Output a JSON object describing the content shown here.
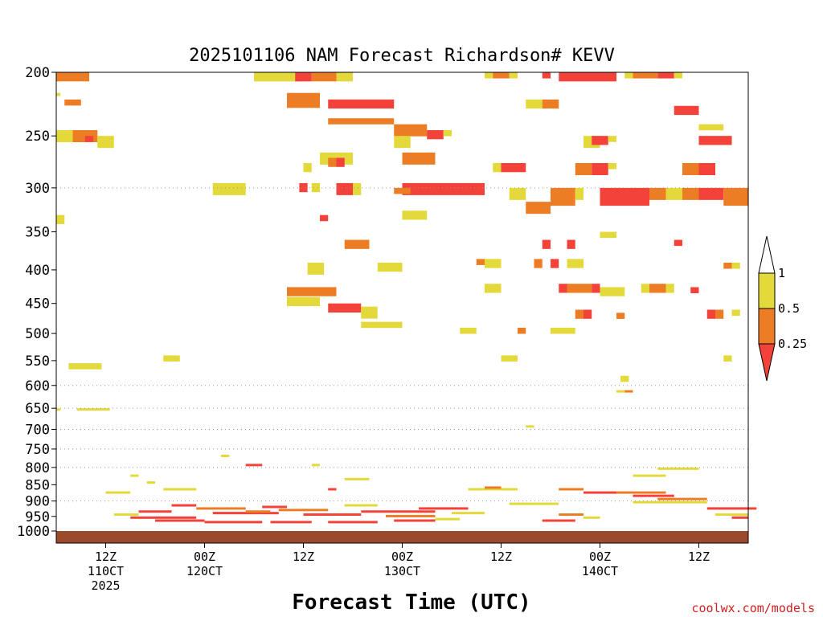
{
  "chart_data": {
    "type": "heatmap",
    "title": "2025101106 NAM Forecast Richardson# KEVV",
    "xlabel": "Forecast Time (UTC)",
    "ylabel": "",
    "footer": "coolwx.com/models",
    "x_range_hours": [
      0,
      84
    ],
    "y_range_hpa": [
      200,
      1000
    ],
    "y_ticks": [
      200,
      250,
      300,
      350,
      400,
      450,
      500,
      550,
      600,
      650,
      700,
      750,
      800,
      850,
      900,
      950,
      1000
    ],
    "y_gridlines": [
      300,
      600,
      650,
      700,
      750,
      800,
      900
    ],
    "x_ticks": [
      {
        "hour": 6,
        "lines": [
          "12Z",
          "110CT",
          "2025"
        ]
      },
      {
        "hour": 18,
        "lines": [
          "00Z",
          "120CT"
        ]
      },
      {
        "hour": 30,
        "lines": [
          "12Z"
        ]
      },
      {
        "hour": 42,
        "lines": [
          "00Z",
          "130CT"
        ]
      },
      {
        "hour": 54,
        "lines": [
          "12Z"
        ]
      },
      {
        "hour": 66,
        "lines": [
          "00Z",
          "140CT"
        ]
      },
      {
        "hour": 78,
        "lines": [
          "12Z"
        ]
      }
    ],
    "colorbar": {
      "labels": [
        "1",
        "0.5",
        "0.25"
      ],
      "colors": {
        "high": "#ffffff",
        "mid": "#e3d93a",
        "low": "#ec7d25",
        "lowest": "#f2423a",
        "ground": "#9b4a2b"
      }
    },
    "ground_level_hpa": 985,
    "cells": [
      {
        "t": 0,
        "p": 200,
        "h": 1.5,
        "c": "low",
        "w": 4
      },
      {
        "t": 0,
        "p": 215,
        "h": 0.5,
        "c": "mid",
        "w": 0.5
      },
      {
        "t": 1,
        "p": 220,
        "h": 1,
        "c": "low",
        "w": 2
      },
      {
        "t": 0,
        "p": 245,
        "h": 2,
        "c": "mid",
        "w": 2
      },
      {
        "t": 2,
        "p": 245,
        "h": 2,
        "c": "low",
        "w": 3
      },
      {
        "t": 3.5,
        "p": 250,
        "h": 1,
        "c": "lowest",
        "w": 1
      },
      {
        "t": 5,
        "p": 250,
        "h": 2,
        "c": "mid",
        "w": 2
      },
      {
        "t": 0,
        "p": 330,
        "h": 1.5,
        "c": "mid",
        "w": 1
      },
      {
        "t": 19,
        "p": 295,
        "h": 2,
        "c": "mid",
        "w": 4
      },
      {
        "t": 24,
        "p": 200,
        "h": 1.5,
        "c": "mid",
        "w": 4
      },
      {
        "t": 28,
        "p": 200,
        "h": 1.5,
        "c": "mid",
        "w": 2
      },
      {
        "t": 29,
        "p": 200,
        "h": 1.5,
        "c": "lowest",
        "w": 2
      },
      {
        "t": 31,
        "p": 200,
        "h": 1.5,
        "c": "low",
        "w": 3
      },
      {
        "t": 34,
        "p": 200,
        "h": 1.5,
        "c": "mid",
        "w": 2
      },
      {
        "t": 28,
        "p": 215,
        "h": 2.5,
        "c": "low",
        "w": 4
      },
      {
        "t": 33,
        "p": 220,
        "h": 1.5,
        "c": "lowest",
        "w": 8
      },
      {
        "t": 33,
        "p": 235,
        "h": 1,
        "c": "low",
        "w": 8
      },
      {
        "t": 41,
        "p": 240,
        "h": 2,
        "c": "low",
        "w": 4
      },
      {
        "t": 41,
        "p": 250,
        "h": 2,
        "c": "mid",
        "w": 2
      },
      {
        "t": 45,
        "p": 245,
        "h": 1.5,
        "c": "lowest",
        "w": 2
      },
      {
        "t": 47,
        "p": 245,
        "h": 1,
        "c": "mid",
        "w": 1
      },
      {
        "t": 42,
        "p": 265,
        "h": 2,
        "c": "low",
        "w": 4
      },
      {
        "t": 32,
        "p": 265,
        "h": 2,
        "c": "mid",
        "w": 4
      },
      {
        "t": 33,
        "p": 270,
        "h": 1.5,
        "c": "low",
        "w": 1
      },
      {
        "t": 34,
        "p": 270,
        "h": 1.5,
        "c": "lowest",
        "w": 1
      },
      {
        "t": 30,
        "p": 275,
        "h": 1.5,
        "c": "mid",
        "w": 1
      },
      {
        "t": 42,
        "p": 295,
        "h": 2,
        "c": "lowest",
        "w": 10
      },
      {
        "t": 41,
        "p": 300,
        "h": 1,
        "c": "low",
        "w": 2
      },
      {
        "t": 29.5,
        "p": 295,
        "h": 1.5,
        "c": "lowest",
        "w": 1
      },
      {
        "t": 31,
        "p": 295,
        "h": 1.5,
        "c": "mid",
        "w": 1
      },
      {
        "t": 34,
        "p": 295,
        "h": 2,
        "c": "lowest",
        "w": 2
      },
      {
        "t": 36,
        "p": 295,
        "h": 2,
        "c": "mid",
        "w": 1
      },
      {
        "t": 42,
        "p": 325,
        "h": 1.5,
        "c": "mid",
        "w": 3
      },
      {
        "t": 32,
        "p": 330,
        "h": 1,
        "c": "lowest",
        "w": 1
      },
      {
        "t": 35,
        "p": 360,
        "h": 1.5,
        "c": "low",
        "w": 3
      },
      {
        "t": 30.5,
        "p": 390,
        "h": 2,
        "c": "mid",
        "w": 2
      },
      {
        "t": 39,
        "p": 390,
        "h": 1.5,
        "c": "mid",
        "w": 3
      },
      {
        "t": 28,
        "p": 425,
        "h": 1.5,
        "c": "low",
        "w": 6
      },
      {
        "t": 28,
        "p": 440,
        "h": 1.5,
        "c": "mid",
        "w": 4
      },
      {
        "t": 33,
        "p": 450,
        "h": 1.5,
        "c": "lowest",
        "w": 4
      },
      {
        "t": 37,
        "p": 455,
        "h": 2,
        "c": "mid",
        "w": 2
      },
      {
        "t": 37,
        "p": 480,
        "h": 1,
        "c": "mid",
        "w": 5
      },
      {
        "t": 52,
        "p": 200,
        "h": 1,
        "c": "mid",
        "w": 1
      },
      {
        "t": 53,
        "p": 200,
        "h": 1,
        "c": "low",
        "w": 2
      },
      {
        "t": 55,
        "p": 200,
        "h": 1,
        "c": "mid",
        "w": 1
      },
      {
        "t": 59,
        "p": 200,
        "h": 1,
        "c": "lowest",
        "w": 1
      },
      {
        "t": 61,
        "p": 200,
        "h": 1.5,
        "c": "lowest",
        "w": 7
      },
      {
        "t": 69,
        "p": 200,
        "h": 1,
        "c": "mid",
        "w": 1
      },
      {
        "t": 70,
        "p": 200,
        "h": 1,
        "c": "low",
        "w": 3
      },
      {
        "t": 73,
        "p": 200,
        "h": 1,
        "c": "lowest",
        "w": 2
      },
      {
        "t": 75,
        "p": 200,
        "h": 1,
        "c": "mid",
        "w": 1
      },
      {
        "t": 57,
        "p": 220,
        "h": 1.5,
        "c": "mid",
        "w": 2
      },
      {
        "t": 59,
        "p": 220,
        "h": 1.5,
        "c": "low",
        "w": 2
      },
      {
        "t": 75,
        "p": 225,
        "h": 1.5,
        "c": "lowest",
        "w": 3
      },
      {
        "t": 78,
        "p": 240,
        "h": 1,
        "c": "mid",
        "w": 3
      },
      {
        "t": 78,
        "p": 250,
        "h": 1.5,
        "c": "lowest",
        "w": 4
      },
      {
        "t": 64,
        "p": 250,
        "h": 2,
        "c": "mid",
        "w": 2
      },
      {
        "t": 65,
        "p": 250,
        "h": 1.5,
        "c": "lowest",
        "w": 2
      },
      {
        "t": 67,
        "p": 250,
        "h": 1,
        "c": "mid",
        "w": 1
      },
      {
        "t": 54,
        "p": 275,
        "h": 1.5,
        "c": "lowest",
        "w": 3
      },
      {
        "t": 53,
        "p": 275,
        "h": 1.5,
        "c": "mid",
        "w": 1
      },
      {
        "t": 63,
        "p": 275,
        "h": 2,
        "c": "low",
        "w": 2
      },
      {
        "t": 65,
        "p": 275,
        "h": 2,
        "c": "lowest",
        "w": 2
      },
      {
        "t": 67,
        "p": 275,
        "h": 1,
        "c": "mid",
        "w": 1
      },
      {
        "t": 76,
        "p": 275,
        "h": 2,
        "c": "low",
        "w": 2
      },
      {
        "t": 78,
        "p": 275,
        "h": 2,
        "c": "lowest",
        "w": 2
      },
      {
        "t": 60,
        "p": 300,
        "h": 3,
        "c": "low",
        "w": 3
      },
      {
        "t": 63,
        "p": 300,
        "h": 2,
        "c": "mid",
        "w": 1
      },
      {
        "t": 66,
        "p": 300,
        "h": 3,
        "c": "lowest",
        "w": 6
      },
      {
        "t": 72,
        "p": 300,
        "h": 2,
        "c": "low",
        "w": 2
      },
      {
        "t": 74,
        "p": 300,
        "h": 2,
        "c": "mid",
        "w": 2
      },
      {
        "t": 76,
        "p": 300,
        "h": 2,
        "c": "low",
        "w": 2
      },
      {
        "t": 78,
        "p": 300,
        "h": 2,
        "c": "lowest",
        "w": 3
      },
      {
        "t": 81,
        "p": 300,
        "h": 3,
        "c": "low",
        "w": 3
      },
      {
        "t": 57,
        "p": 315,
        "h": 2,
        "c": "low",
        "w": 3
      },
      {
        "t": 55,
        "p": 300,
        "h": 2,
        "c": "mid",
        "w": 2
      },
      {
        "t": 59,
        "p": 360,
        "h": 1.5,
        "c": "lowest",
        "w": 1
      },
      {
        "t": 62,
        "p": 360,
        "h": 1.5,
        "c": "lowest",
        "w": 1
      },
      {
        "t": 66,
        "p": 350,
        "h": 1,
        "c": "mid",
        "w": 2
      },
      {
        "t": 75,
        "p": 360,
        "h": 1,
        "c": "lowest",
        "w": 1
      },
      {
        "t": 52,
        "p": 385,
        "h": 1.5,
        "c": "mid",
        "w": 2
      },
      {
        "t": 51,
        "p": 385,
        "h": 1,
        "c": "low",
        "w": 1
      },
      {
        "t": 58,
        "p": 385,
        "h": 1.5,
        "c": "low",
        "w": 1
      },
      {
        "t": 60,
        "p": 385,
        "h": 1.5,
        "c": "lowest",
        "w": 1
      },
      {
        "t": 62,
        "p": 385,
        "h": 1.5,
        "c": "mid",
        "w": 2
      },
      {
        "t": 52,
        "p": 420,
        "h": 1.5,
        "c": "mid",
        "w": 2
      },
      {
        "t": 61,
        "p": 420,
        "h": 1.5,
        "c": "lowest",
        "w": 1
      },
      {
        "t": 62,
        "p": 420,
        "h": 1.5,
        "c": "low",
        "w": 3
      },
      {
        "t": 65,
        "p": 420,
        "h": 1.5,
        "c": "lowest",
        "w": 1
      },
      {
        "t": 66,
        "p": 425,
        "h": 1.5,
        "c": "mid",
        "w": 3
      },
      {
        "t": 71,
        "p": 420,
        "h": 1.5,
        "c": "mid",
        "w": 1
      },
      {
        "t": 72,
        "p": 420,
        "h": 1.5,
        "c": "low",
        "w": 2
      },
      {
        "t": 74,
        "p": 420,
        "h": 1.5,
        "c": "mid",
        "w": 1
      },
      {
        "t": 77,
        "p": 425,
        "h": 1,
        "c": "lowest",
        "w": 1
      },
      {
        "t": 63,
        "p": 460,
        "h": 1.5,
        "c": "low",
        "w": 1
      },
      {
        "t": 64,
        "p": 460,
        "h": 1.5,
        "c": "lowest",
        "w": 1
      },
      {
        "t": 68,
        "p": 465,
        "h": 1,
        "c": "low",
        "w": 1
      },
      {
        "t": 79,
        "p": 460,
        "h": 1.5,
        "c": "lowest",
        "w": 1
      },
      {
        "t": 80,
        "p": 460,
        "h": 1.5,
        "c": "low",
        "w": 1
      },
      {
        "t": 82,
        "p": 460,
        "h": 1,
        "c": "mid",
        "w": 1
      },
      {
        "t": 60,
        "p": 490,
        "h": 1,
        "c": "mid",
        "w": 3
      },
      {
        "t": 56,
        "p": 490,
        "h": 1,
        "c": "low",
        "w": 1
      },
      {
        "t": 49,
        "p": 490,
        "h": 1,
        "c": "mid",
        "w": 2
      },
      {
        "t": 82,
        "p": 390,
        "h": 1,
        "c": "mid",
        "w": 1
      },
      {
        "t": 81,
        "p": 390,
        "h": 1,
        "c": "low",
        "w": 1
      },
      {
        "t": 81,
        "p": 540,
        "h": 1,
        "c": "mid",
        "w": 1
      },
      {
        "t": 54,
        "p": 540,
        "h": 1,
        "c": "mid",
        "w": 2
      },
      {
        "t": 13,
        "p": 540,
        "h": 1,
        "c": "mid",
        "w": 2
      },
      {
        "t": 1.5,
        "p": 555,
        "h": 1,
        "c": "mid",
        "w": 4
      },
      {
        "t": 2.5,
        "p": 650,
        "h": 1,
        "c": "mid",
        "w": 4
      },
      {
        "t": 0,
        "p": 650,
        "h": 1,
        "c": "mid",
        "w": 0.5
      },
      {
        "t": 68,
        "p": 610,
        "h": 1,
        "c": "mid",
        "w": 1
      },
      {
        "t": 69,
        "p": 610,
        "h": 1,
        "c": "low",
        "w": 1
      },
      {
        "t": 68.5,
        "p": 580,
        "h": 1,
        "c": "mid",
        "w": 1
      },
      {
        "t": 57,
        "p": 690,
        "h": 1,
        "c": "mid",
        "w": 1
      },
      {
        "t": 23,
        "p": 790,
        "h": 1,
        "c": "lowest",
        "w": 2
      },
      {
        "t": 20,
        "p": 765,
        "h": 1,
        "c": "mid",
        "w": 1
      },
      {
        "t": 31,
        "p": 790,
        "h": 1,
        "c": "mid",
        "w": 1
      },
      {
        "t": 73,
        "p": 800,
        "h": 1,
        "c": "mid",
        "w": 5
      },
      {
        "t": 70,
        "p": 820,
        "h": 1,
        "c": "mid",
        "w": 4
      },
      {
        "t": 35,
        "p": 830,
        "h": 1,
        "c": "mid",
        "w": 3
      },
      {
        "t": 9,
        "p": 820,
        "h": 1,
        "c": "mid",
        "w": 1
      },
      {
        "t": 11,
        "p": 840,
        "h": 1,
        "c": "mid",
        "w": 1
      },
      {
        "t": 13,
        "p": 860,
        "h": 1,
        "c": "mid",
        "w": 4
      },
      {
        "t": 6,
        "p": 870,
        "h": 1,
        "c": "mid",
        "w": 3
      },
      {
        "t": 33,
        "p": 860,
        "h": 1,
        "c": "lowest",
        "w": 1
      },
      {
        "t": 50,
        "p": 860,
        "h": 1,
        "c": "mid",
        "w": 6
      },
      {
        "t": 52,
        "p": 855,
        "h": 1,
        "c": "low",
        "w": 2
      },
      {
        "t": 61,
        "p": 860,
        "h": 1,
        "c": "low",
        "w": 3
      },
      {
        "t": 64,
        "p": 870,
        "h": 1,
        "c": "lowest",
        "w": 4
      },
      {
        "t": 68,
        "p": 870,
        "h": 1,
        "c": "low",
        "w": 6
      },
      {
        "t": 70,
        "p": 880,
        "h": 1,
        "c": "lowest",
        "w": 5
      },
      {
        "t": 73,
        "p": 890,
        "h": 1,
        "c": "low",
        "w": 6
      },
      {
        "t": 70,
        "p": 900,
        "h": 1,
        "c": "mid",
        "w": 9
      },
      {
        "t": 79,
        "p": 920,
        "h": 1,
        "c": "lowest",
        "w": 6
      },
      {
        "t": 80,
        "p": 940,
        "h": 1,
        "c": "mid",
        "w": 4
      },
      {
        "t": 82,
        "p": 950,
        "h": 1,
        "c": "lowest",
        "w": 2
      },
      {
        "t": 7,
        "p": 940,
        "h": 1,
        "c": "mid",
        "w": 3
      },
      {
        "t": 10,
        "p": 930,
        "h": 1,
        "c": "lowest",
        "w": 4
      },
      {
        "t": 9,
        "p": 950,
        "h": 1,
        "c": "lowest",
        "w": 8
      },
      {
        "t": 14,
        "p": 910,
        "h": 1,
        "c": "lowest",
        "w": 3
      },
      {
        "t": 17,
        "p": 920,
        "h": 1,
        "c": "low",
        "w": 6
      },
      {
        "t": 19,
        "p": 935,
        "h": 1,
        "c": "lowest",
        "w": 8
      },
      {
        "t": 23,
        "p": 930,
        "h": 1,
        "c": "low",
        "w": 3
      },
      {
        "t": 25,
        "p": 915,
        "h": 1,
        "c": "lowest",
        "w": 3
      },
      {
        "t": 27,
        "p": 925,
        "h": 1,
        "c": "low",
        "w": 6
      },
      {
        "t": 30,
        "p": 940,
        "h": 1,
        "c": "lowest",
        "w": 7
      },
      {
        "t": 35,
        "p": 910,
        "h": 1,
        "c": "mid",
        "w": 4
      },
      {
        "t": 37,
        "p": 930,
        "h": 1,
        "c": "lowest",
        "w": 9
      },
      {
        "t": 40,
        "p": 945,
        "h": 1,
        "c": "low",
        "w": 6
      },
      {
        "t": 44,
        "p": 920,
        "h": 1,
        "c": "lowest",
        "w": 6
      },
      {
        "t": 48,
        "p": 935,
        "h": 1,
        "c": "mid",
        "w": 4
      },
      {
        "t": 55,
        "p": 905,
        "h": 1,
        "c": "mid",
        "w": 6
      },
      {
        "t": 59,
        "p": 960,
        "h": 1,
        "c": "lowest",
        "w": 4
      },
      {
        "t": 61,
        "p": 940,
        "h": 1,
        "c": "low",
        "w": 3
      },
      {
        "t": 64,
        "p": 950,
        "h": 1,
        "c": "mid",
        "w": 2
      },
      {
        "t": 12,
        "p": 960,
        "h": 1,
        "c": "lowest",
        "w": 6
      },
      {
        "t": 18,
        "p": 965,
        "h": 1,
        "c": "lowest",
        "w": 7
      },
      {
        "t": 26,
        "p": 965,
        "h": 1,
        "c": "lowest",
        "w": 5
      },
      {
        "t": 33,
        "p": 965,
        "h": 1,
        "c": "lowest",
        "w": 6
      },
      {
        "t": 41,
        "p": 960,
        "h": 1,
        "c": "lowest",
        "w": 5
      },
      {
        "t": 46,
        "p": 955,
        "h": 1,
        "c": "mid",
        "w": 3
      }
    ]
  }
}
